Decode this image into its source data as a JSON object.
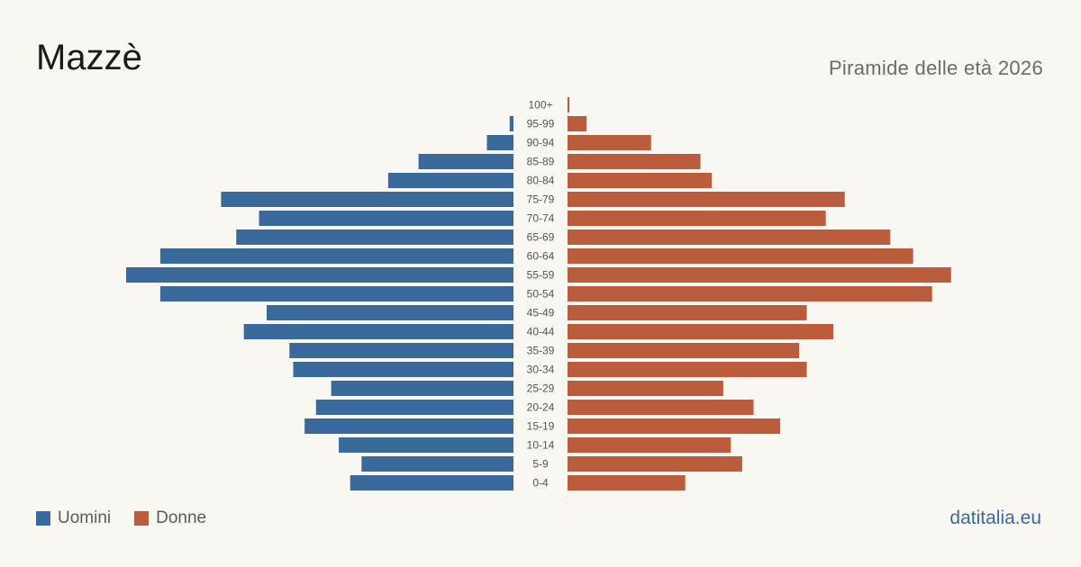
{
  "header": {
    "title": "Mazzè",
    "subtitle": "Piramide delle età 2026"
  },
  "legend": {
    "men_label": "Uomini",
    "women_label": "Donne"
  },
  "footer": {
    "brand": "datitalia.eu"
  },
  "colors": {
    "men": "#3a6a9b",
    "women": "#bb5d3c",
    "background": "#f9f7f2",
    "tick_text": "#555555"
  },
  "chart_data": {
    "type": "bar",
    "orientation": "horizontal-pyramid",
    "categories": [
      "100+",
      "95-99",
      "90-94",
      "85-89",
      "80-84",
      "75-79",
      "70-74",
      "65-69",
      "60-64",
      "55-59",
      "50-54",
      "45-49",
      "40-44",
      "35-39",
      "30-34",
      "25-29",
      "20-24",
      "15-19",
      "10-14",
      "5-9",
      "0-4"
    ],
    "series": [
      {
        "name": "Uomini",
        "values": [
          0,
          1,
          7,
          25,
          33,
          77,
          67,
          73,
          93,
          102,
          93,
          65,
          71,
          59,
          58,
          48,
          52,
          55,
          46,
          40,
          43
        ]
      },
      {
        "name": "Donne",
        "values": [
          0.5,
          5,
          22,
          35,
          38,
          73,
          68,
          85,
          91,
          101,
          96,
          63,
          70,
          61,
          63,
          41,
          49,
          56,
          43,
          46,
          31
        ]
      }
    ]
  }
}
